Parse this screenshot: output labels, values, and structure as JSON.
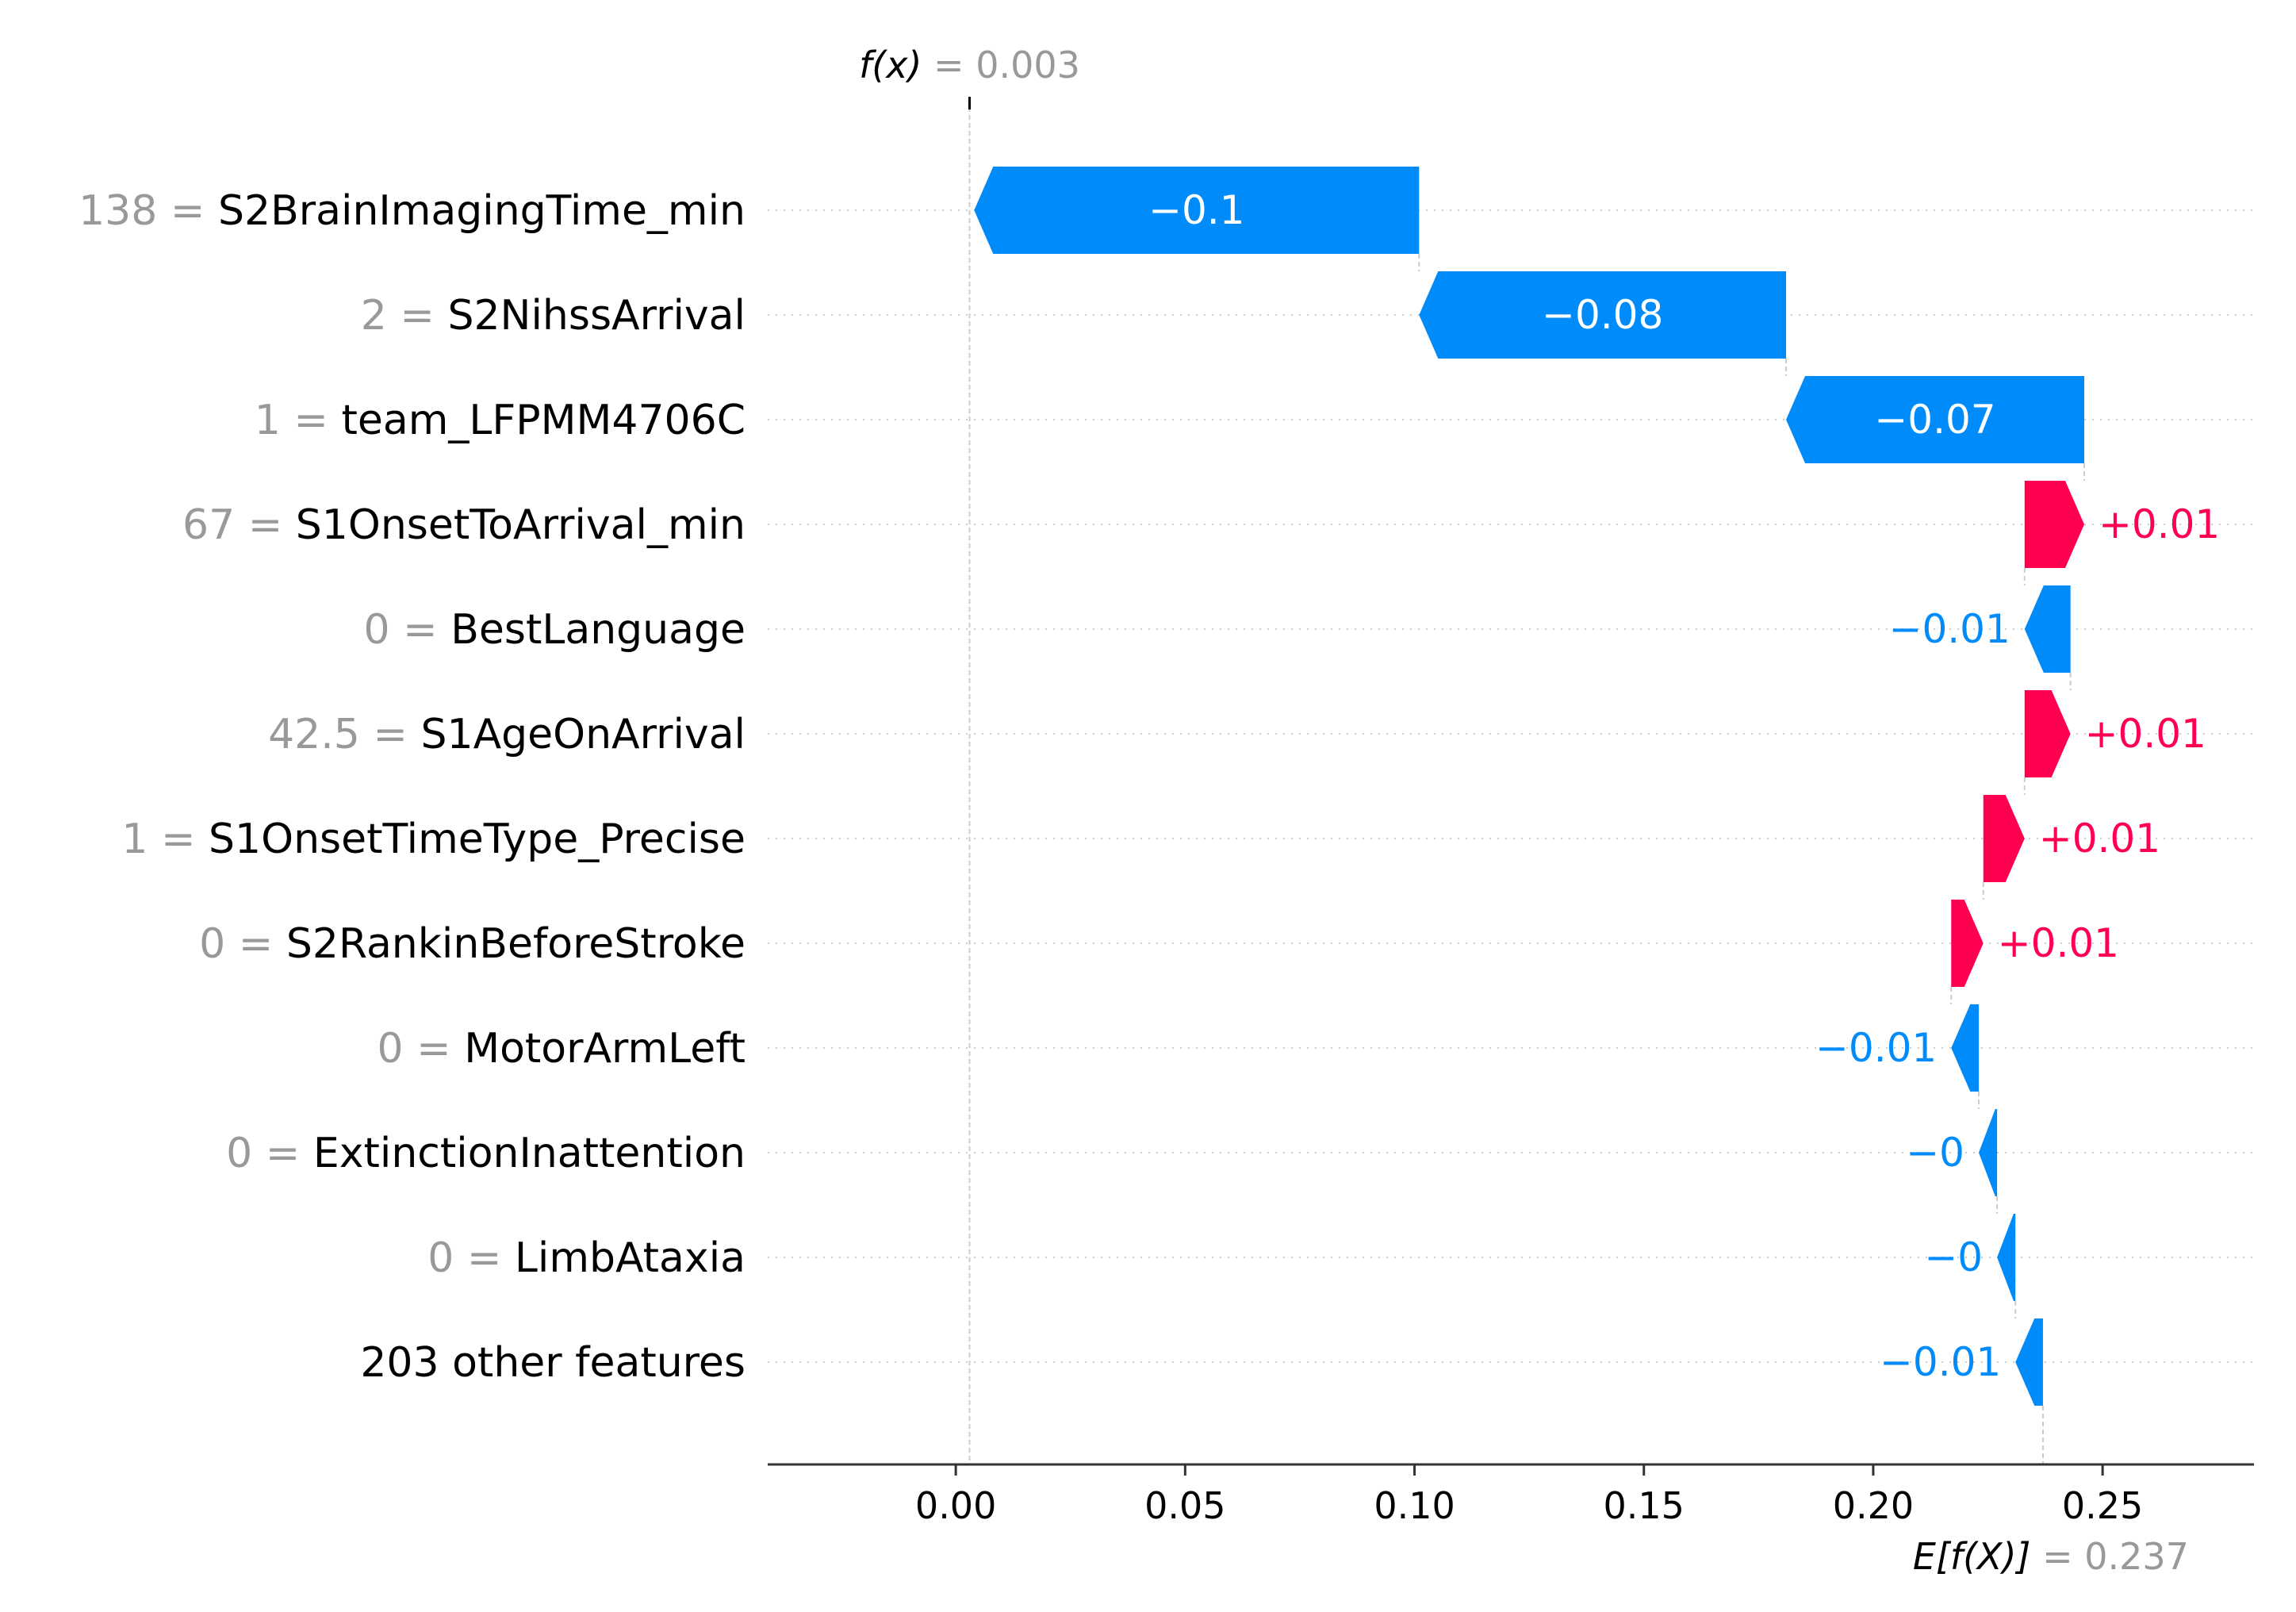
{
  "chart_data": {
    "type": "waterfall",
    "fx_label": "f(x)",
    "fx_value": "0.003",
    "fx": 0.003,
    "efx_label": "E[f(X)]",
    "efx_value": "0.237",
    "efx": 0.237,
    "xlim": [
      -0.041,
      0.283
    ],
    "x_ticks": [
      0.0,
      0.05,
      0.1,
      0.15,
      0.2,
      0.25
    ],
    "x_tick_labels": [
      "0.00",
      "0.05",
      "0.10",
      "0.15",
      "0.20",
      "0.25"
    ],
    "colors": {
      "positive": "#ff0051",
      "negative": "#008bfb",
      "axis": "#333333",
      "grid": "#cccccc",
      "muted": "#999999"
    },
    "features": [
      {
        "value": "138",
        "name": "S2BrainImagingTime_min",
        "shap": -0.097,
        "label": "−0.1"
      },
      {
        "value": "2",
        "name": "S2NihssArrival",
        "shap": -0.08,
        "label": "−0.08"
      },
      {
        "value": "1",
        "name": "team_LFPMM4706C",
        "shap": -0.065,
        "label": "−0.07"
      },
      {
        "value": "67",
        "name": "S1OnsetToArrival_min",
        "shap": 0.013,
        "label": "+0.01"
      },
      {
        "value": "0",
        "name": "BestLanguage",
        "shap": -0.01,
        "label": "−0.01"
      },
      {
        "value": "42.5",
        "name": "S1AgeOnArrival",
        "shap": 0.01,
        "label": "+0.01"
      },
      {
        "value": "1",
        "name": "S1OnsetTimeType_Precise",
        "shap": 0.009,
        "label": "+0.01"
      },
      {
        "value": "0",
        "name": "S2RankinBeforeStroke",
        "shap": 0.007,
        "label": "+0.01"
      },
      {
        "value": "0",
        "name": "MotorArmLeft",
        "shap": -0.006,
        "label": "−0.01"
      },
      {
        "value": "0",
        "name": "ExtinctionInattention",
        "shap": -0.004,
        "label": "−0"
      },
      {
        "value": "0",
        "name": "LimbAtaxia",
        "shap": -0.004,
        "label": "−0"
      },
      {
        "value": "",
        "name": "203 other features",
        "shap": -0.006,
        "label": "−0.01"
      }
    ]
  }
}
